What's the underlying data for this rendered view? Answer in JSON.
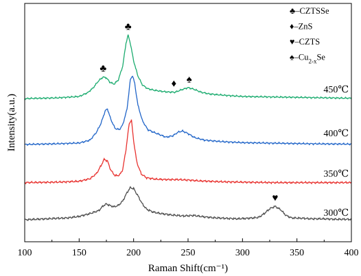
{
  "chart_data": {
    "type": "line",
    "title": "",
    "xlabel": "Raman Shift(cm⁻¹)",
    "ylabel": "Intensity(a.u.)",
    "xlim": [
      100,
      400
    ],
    "xticks": [
      100,
      150,
      200,
      250,
      300,
      350,
      400
    ],
    "yticks_shown": false,
    "grid": false,
    "legend": {
      "position": "top-right",
      "entries": [
        {
          "symbol": "♣",
          "label": "–CZTSSe"
        },
        {
          "symbol": "♦",
          "label": "–ZnS"
        },
        {
          "symbol": "♥",
          "label": "–CZTS"
        },
        {
          "symbol": "♠",
          "label": "–Cu",
          "sub": "2-x",
          "after": "Se"
        }
      ]
    },
    "series": [
      {
        "name": "300℃",
        "color": "#4d4d4d",
        "points": [
          [
            100,
            0.3
          ],
          [
            110,
            0.4
          ],
          [
            120,
            0.5
          ],
          [
            130,
            0.6
          ],
          [
            140,
            0.7
          ],
          [
            150,
            1.0
          ],
          [
            160,
            1.6
          ],
          [
            168,
            2.2
          ],
          [
            172,
            3.2
          ],
          [
            175,
            3.6
          ],
          [
            178,
            3.3
          ],
          [
            182,
            3.0
          ],
          [
            186,
            3.3
          ],
          [
            190,
            4.2
          ],
          [
            194,
            6.0
          ],
          [
            197,
            7.0
          ],
          [
            200,
            6.8
          ],
          [
            204,
            5.3
          ],
          [
            208,
            3.6
          ],
          [
            212,
            2.5
          ],
          [
            218,
            1.9
          ],
          [
            225,
            1.6
          ],
          [
            235,
            1.3
          ],
          [
            245,
            1.1
          ],
          [
            255,
            1.2
          ],
          [
            265,
            0.9
          ],
          [
            275,
            0.7
          ],
          [
            285,
            0.6
          ],
          [
            295,
            0.5
          ],
          [
            305,
            0.6
          ],
          [
            315,
            0.8
          ],
          [
            320,
            1.6
          ],
          [
            325,
            2.6
          ],
          [
            330,
            3.1
          ],
          [
            335,
            2.4
          ],
          [
            340,
            1.2
          ],
          [
            345,
            0.7
          ],
          [
            355,
            0.6
          ],
          [
            365,
            0.5
          ],
          [
            375,
            0.5
          ],
          [
            385,
            0.4
          ],
          [
            400,
            0.4
          ]
        ]
      },
      {
        "name": "350℃",
        "color": "#e8312e",
        "points": [
          [
            100,
            0.3
          ],
          [
            130,
            0.4
          ],
          [
            150,
            0.6
          ],
          [
            160,
            1.2
          ],
          [
            166,
            2.4
          ],
          [
            170,
            4.2
          ],
          [
            173,
            5.7
          ],
          [
            176,
            5.3
          ],
          [
            179,
            3.2
          ],
          [
            183,
            1.9
          ],
          [
            187,
            2.0
          ],
          [
            190,
            3.3
          ],
          [
            193,
            8.0
          ],
          [
            196,
            14.0
          ],
          [
            198,
            14.8
          ],
          [
            200,
            10.0
          ],
          [
            203,
            5.0
          ],
          [
            207,
            2.3
          ],
          [
            212,
            1.4
          ],
          [
            220,
            1.1
          ],
          [
            230,
            1.0
          ],
          [
            240,
            1.0
          ],
          [
            250,
            0.9
          ],
          [
            260,
            0.7
          ],
          [
            280,
            0.5
          ],
          [
            300,
            0.4
          ],
          [
            330,
            0.3
          ],
          [
            360,
            0.3
          ],
          [
            400,
            0.3
          ]
        ]
      },
      {
        "name": "400℃",
        "color": "#1f64c8",
        "points": [
          [
            100,
            0.2
          ],
          [
            130,
            0.4
          ],
          [
            150,
            0.6
          ],
          [
            160,
            1.4
          ],
          [
            166,
            3.6
          ],
          [
            170,
            6.0
          ],
          [
            174,
            9.5
          ],
          [
            176,
            10.0
          ],
          [
            179,
            7.2
          ],
          [
            183,
            4.6
          ],
          [
            187,
            4.3
          ],
          [
            190,
            5.6
          ],
          [
            194,
            10.0
          ],
          [
            197,
            18.0
          ],
          [
            199,
            19.2
          ],
          [
            201,
            17.0
          ],
          [
            204,
            11.0
          ],
          [
            208,
            6.8
          ],
          [
            213,
            4.3
          ],
          [
            218,
            3.6
          ],
          [
            224,
            2.9
          ],
          [
            230,
            2.2
          ],
          [
            236,
            2.6
          ],
          [
            241,
            3.6
          ],
          [
            245,
            3.9
          ],
          [
            250,
            3.2
          ],
          [
            256,
            2.1
          ],
          [
            265,
            1.4
          ],
          [
            280,
            1.0
          ],
          [
            300,
            0.7
          ],
          [
            320,
            0.6
          ],
          [
            340,
            0.5
          ],
          [
            360,
            0.4
          ],
          [
            400,
            0.3
          ]
        ]
      },
      {
        "name": "450℃",
        "color": "#1aab6e",
        "points": [
          [
            100,
            0.3
          ],
          [
            130,
            0.5
          ],
          [
            150,
            0.9
          ],
          [
            158,
            2.0
          ],
          [
            163,
            3.4
          ],
          [
            168,
            5.4
          ],
          [
            172,
            6.4
          ],
          [
            175,
            6.2
          ],
          [
            178,
            5.0
          ],
          [
            182,
            4.4
          ],
          [
            186,
            5.6
          ],
          [
            190,
            9.5
          ],
          [
            193,
            16.0
          ],
          [
            195,
            18.3
          ],
          [
            197,
            16.0
          ],
          [
            200,
            11.0
          ],
          [
            204,
            6.7
          ],
          [
            208,
            4.2
          ],
          [
            213,
            3.1
          ],
          [
            220,
            2.6
          ],
          [
            230,
            2.2
          ],
          [
            238,
            2.1
          ],
          [
            244,
            2.8
          ],
          [
            250,
            3.4
          ],
          [
            255,
            3.0
          ],
          [
            262,
            2.1
          ],
          [
            270,
            1.6
          ],
          [
            285,
            1.2
          ],
          [
            300,
            0.9
          ],
          [
            320,
            0.8
          ],
          [
            340,
            0.7
          ],
          [
            360,
            0.6
          ],
          [
            380,
            0.5
          ],
          [
            400,
            0.4
          ]
        ]
      }
    ],
    "peak_markers": [
      {
        "symbol": "♣",
        "x": 172,
        "series": "450℃"
      },
      {
        "symbol": "♣",
        "x": 195,
        "series": "450℃"
      },
      {
        "symbol": "♦",
        "x": 237,
        "series": "450℃"
      },
      {
        "symbol": "♠",
        "x": 251,
        "series": "450℃"
      },
      {
        "symbol": "♥",
        "x": 330,
        "series": "300℃"
      }
    ]
  }
}
